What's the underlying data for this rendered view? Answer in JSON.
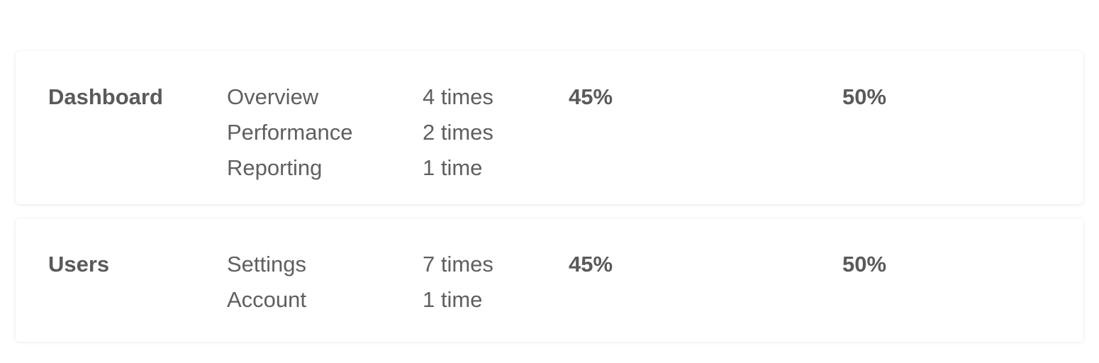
{
  "groups": [
    {
      "name": "Dashboard",
      "pages": [
        "Overview",
        "Performance",
        "Reporting"
      ],
      "counts": [
        "4 times",
        "2 times",
        "1 time"
      ],
      "percent_a": "45%",
      "percent_b": "50%"
    },
    {
      "name": "Users",
      "pages": [
        "Settings",
        "Account"
      ],
      "counts": [
        "7 times",
        "1 time"
      ],
      "percent_a": "45%",
      "percent_b": "50%"
    }
  ]
}
